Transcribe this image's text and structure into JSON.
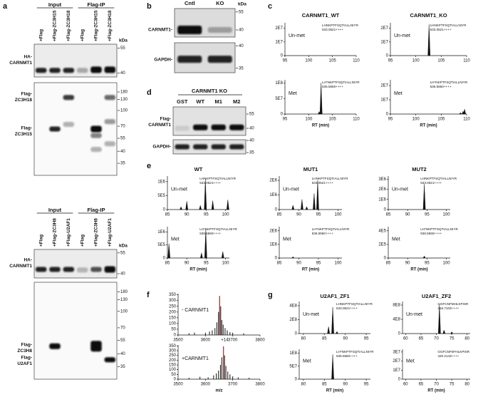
{
  "panel_a": {
    "label": "a",
    "top": {
      "groups": [
        "Input",
        "Flag-IP"
      ],
      "lanes": [
        "+Flag",
        "+Flag-ZC3H15",
        "+Flag-ZC3H18",
        "+Flag",
        "+Flag-ZC3H15",
        "+Flag-ZC3H18"
      ],
      "unit": "kDa",
      "blots": [
        {
          "labels": [
            [
              "HA-",
              "CARNMT1"
            ]
          ],
          "markers": [
            55,
            40
          ]
        },
        {
          "labels": [
            [
              "Flag-",
              "ZC3H18"
            ],
            [
              "Flag-",
              "ZC3H15"
            ]
          ],
          "markers": [
            180,
            130,
            100,
            70,
            55,
            40,
            35
          ]
        }
      ]
    },
    "bottom": {
      "groups": [
        "Input",
        "Flag-IP"
      ],
      "lanes": [
        "+Flag",
        "+Flag-ZC3H8",
        "+Flag-U2AF1",
        "+Flag",
        "+Flag-ZC3H8",
        "+Flag-U2AF1"
      ],
      "unit": "kDa",
      "blots": [
        {
          "labels": [
            [
              "HA-",
              "CARNMT1"
            ]
          ],
          "markers": [
            55,
            40
          ]
        },
        {
          "labels": [
            [
              "Flag-",
              "ZC3H8"
            ],
            [
              "Flag-",
              "U2AF1"
            ]
          ],
          "markers": [
            180,
            130,
            100,
            70,
            55,
            40,
            35
          ]
        }
      ]
    }
  },
  "panel_b": {
    "label": "b",
    "lanes": [
      "Cntl",
      "KO"
    ],
    "unit": "kDa",
    "blots": [
      {
        "labels": [
          [
            "CARNMT1-"
          ]
        ],
        "markers": [
          55,
          40
        ]
      },
      {
        "labels": [
          [
            "GAPDH-"
          ]
        ],
        "markers": [
          40,
          35
        ]
      }
    ]
  },
  "panel_d": {
    "label": "d",
    "header": "CARNMT1 KO",
    "lanes": [
      "GST",
      "WT",
      "M1",
      "M2"
    ],
    "blots": [
      {
        "labels": [
          [
            "Flag-",
            "CARNMT1"
          ]
        ],
        "markers": [
          55,
          40
        ]
      },
      {
        "labels": [
          [
            "GAPDH-"
          ]
        ],
        "markers": [
          40,
          35
        ]
      }
    ]
  },
  "panel_c": {
    "label": "c",
    "xlabel": "RT (min)",
    "columns": [
      {
        "title": "CARNMT1_WT",
        "plots": [
          {
            "tag": "Un-met",
            "peptide": [
              "LHNKPTFSQTIALLNIYR",
              "533.0521++++"
            ],
            "xlim": [
              95,
              110
            ],
            "xticks": [
              95,
              100,
              105,
              110
            ],
            "ylim": [
              0,
              24000000
            ],
            "yticks": [
              0,
              {
                "value": 10000000,
                "label": "1E7"
              },
              {
                "value": 20000000,
                "label": "2E7"
              }
            ]
          },
          {
            "tag": "Met",
            "peptide": [
              "LH*NKPTFSQTIALLNIYR",
              "536.5560++++"
            ],
            "xlim": [
              95,
              110
            ],
            "xticks": [
              95,
              100,
              105,
              110
            ],
            "ylim": [
              0,
              110000000
            ],
            "yticks": [
              0,
              {
                "value": 50000000,
                "label": "5E7"
              },
              {
                "value": 100000000,
                "label": "1E8"
              }
            ],
            "peaks": [
              {
                "x": 102.2,
                "y": 8000000
              },
              {
                "x": 102.6,
                "y": 100000000
              }
            ]
          }
        ]
      },
      {
        "title": "CARNMT1_KO",
        "plots": [
          {
            "tag": "Un-met",
            "peptide": [
              "LHNKPTFSQTIALLNIYR",
              "533.0521++++"
            ],
            "xlim": [
              95,
              110
            ],
            "xticks": [
              95,
              100,
              105,
              110
            ],
            "ylim": [
              0,
              24000000
            ],
            "yticks": [
              0,
              {
                "value": 10000000,
                "label": "1E7"
              },
              {
                "value": 20000000,
                "label": "2E7"
              }
            ],
            "peaks": [
              {
                "x": 102.6,
                "y": 23000000
              }
            ]
          },
          {
            "tag": "Met",
            "peptide": [
              "LH*NKPTFSQTIALLNIYR",
              "536.5560++++"
            ],
            "xlim": [
              95,
              110
            ],
            "xticks": [
              95,
              100,
              105,
              110
            ],
            "ylim": [
              0,
              24000000
            ],
            "yticks": [
              0,
              {
                "value": 10000000,
                "label": "1E7"
              },
              {
                "value": 20000000,
                "label": "2E7"
              }
            ],
            "peaks": [
              {
                "x": 108.8,
                "y": 1000000
              },
              {
                "x": 109.3,
                "y": 2000000
              },
              {
                "x": 109.6,
                "y": 3500000
              }
            ]
          }
        ]
      }
    ]
  },
  "panel_e": {
    "label": "e",
    "xlabel": "RT (min)",
    "columns": [
      {
        "title": "WT",
        "plots": [
          {
            "tag": "Un-met",
            "peptide": [
              "LHNKPTFSQTIALLNIYR",
              "533.0521++++"
            ],
            "xlim": [
              85,
              101
            ],
            "xticks": [
              85,
              90,
              95,
              100
            ],
            "ylim": [
              0,
              1200000
            ],
            "yticks": [
              0,
              {
                "value": 500000,
                "label": "5E5"
              },
              {
                "value": 1000000,
                "label": "1E6"
              }
            ],
            "peaks": [
              {
                "x": 88.5,
                "y": 100000
              },
              {
                "x": 90,
                "y": 300000
              },
              {
                "x": 93.5,
                "y": 150000
              },
              {
                "x": 94.8,
                "y": 1100000
              },
              {
                "x": 96.7,
                "y": 320000
              },
              {
                "x": 100.6,
                "y": 350000
              }
            ]
          },
          {
            "tag": "Met",
            "peptide": [
              "LH*NKPTFSQTIALLNIYR",
              "536.5560++++"
            ],
            "xlim": [
              85,
              101
            ],
            "xticks": [
              85,
              90,
              95,
              100
            ],
            "ylim": [
              0,
              1200000
            ],
            "yticks": [
              0,
              {
                "value": 500000,
                "label": "5E5"
              },
              {
                "value": 1000000,
                "label": "1E6"
              }
            ],
            "peaks": [
              {
                "x": 85.4,
                "y": 550000
              },
              {
                "x": 93.8,
                "y": 200000
              },
              {
                "x": 94.9,
                "y": 1100000
              },
              {
                "x": 99.3,
                "y": 250000
              }
            ]
          }
        ]
      },
      {
        "title": "MUT1",
        "plots": [
          {
            "tag": "Un-met",
            "peptide": [
              "LHNKPTFSQTIALLNIYR",
              "533.0521++++"
            ],
            "xlim": [
              85,
              101
            ],
            "xticks": [
              85,
              90,
              95,
              100
            ],
            "ylim": [
              0,
              2300000
            ],
            "yticks": [
              0,
              {
                "value": 1000000,
                "label": "1E6"
              },
              {
                "value": 2000000,
                "label": "2E6"
              }
            ],
            "peaks": [
              {
                "x": 88.5,
                "y": 300000
              },
              {
                "x": 90.8,
                "y": 700000
              },
              {
                "x": 92,
                "y": 200000
              },
              {
                "x": 93.9,
                "y": 1100000
              },
              {
                "x": 94.8,
                "y": 2000000
              }
            ]
          },
          {
            "tag": "Met",
            "peptide": [
              "LH*NKPTFSQTIALLNIYR",
              "536.5560++++"
            ],
            "xlim": [
              85,
              101
            ],
            "xticks": [
              85,
              90,
              95,
              100
            ],
            "ylim": [
              0,
              2300000
            ],
            "yticks": [
              0,
              {
                "value": 1000000,
                "label": "1E6"
              },
              {
                "value": 2000000,
                "label": "2E6"
              }
            ],
            "peaks": [
              {
                "x": 88.5,
                "y": 100000
              }
            ]
          }
        ]
      },
      {
        "title": "MUT2",
        "plots": [
          {
            "tag": "Un-met",
            "peptide": [
              "LHNKPTFSQTIALLNIYR",
              "533.0521++++"
            ],
            "xlim": [
              85,
              101
            ],
            "xticks": [
              85,
              90,
              95,
              100
            ],
            "ylim": [
              0,
              3300000
            ],
            "yticks": [
              0,
              {
                "value": 1000000,
                "label": "1E6"
              },
              {
                "value": 2000000,
                "label": "2E6"
              },
              {
                "value": 3000000,
                "label": "3E6"
              }
            ],
            "peaks": [
              {
                "x": 94.3,
                "y": 2500000
              }
            ]
          },
          {
            "tag": "Met",
            "peptide": [
              "LH*NKPTFSQTIALLNIYR",
              "536.5560++++"
            ],
            "xlim": [
              85,
              101
            ],
            "xticks": [
              85,
              90,
              95,
              100
            ],
            "ylim": [
              0,
              460000
            ],
            "yticks": [
              0,
              {
                "value": 200000,
                "label": "2E5"
              },
              {
                "value": 400000,
                "label": "4E5"
              }
            ],
            "peaks": [
              {
                "x": 94.3,
                "y": 30000
              }
            ]
          }
        ]
      }
    ]
  },
  "panel_f": {
    "label": "f",
    "annotation": "+14",
    "xlabel": "m/z",
    "plots": [
      {
        "tag": "- CARNMT1",
        "color": "#111111",
        "xlim": [
          3500,
          3800
        ],
        "xticks": [
          3500,
          3600,
          3700,
          3800
        ],
        "ylim": [
          0,
          360
        ],
        "yticks": [
          0,
          50,
          100,
          150,
          200,
          250,
          300,
          350
        ],
        "peaks": [
          {
            "x": 3540,
            "y": 15
          },
          {
            "x": 3560,
            "y": 20
          },
          {
            "x": 3600,
            "y": 20
          },
          {
            "x": 3615,
            "y": 30
          },
          {
            "x": 3625,
            "y": 40
          },
          {
            "x": 3635,
            "y": 60
          },
          {
            "x": 3642,
            "y": 110
          },
          {
            "x": 3648,
            "y": 200
          },
          {
            "x": 3652,
            "y": 340,
            "color": "#d9302a"
          },
          {
            "x": 3656,
            "y": 250
          },
          {
            "x": 3660,
            "y": 130
          },
          {
            "x": 3665,
            "y": 90
          },
          {
            "x": 3672,
            "y": 60
          },
          {
            "x": 3680,
            "y": 40
          },
          {
            "x": 3690,
            "y": 25
          },
          {
            "x": 3700,
            "y": 20
          },
          {
            "x": 3740,
            "y": 15
          }
        ]
      },
      {
        "tag": "+CARNMT1",
        "color": "#111111",
        "xlim": [
          3500,
          3800
        ],
        "xticks": [
          3500,
          3600,
          3700,
          3800
        ],
        "ylim": [
          0,
          360
        ],
        "yticks": [
          0,
          50,
          100,
          150,
          200,
          250,
          300,
          350
        ],
        "peaks": [
          {
            "x": 3540,
            "y": 15
          },
          {
            "x": 3580,
            "y": 25
          },
          {
            "x": 3610,
            "y": 20
          },
          {
            "x": 3630,
            "y": 40
          },
          {
            "x": 3640,
            "y": 60
          },
          {
            "x": 3648,
            "y": 90
          },
          {
            "x": 3655,
            "y": 150
          },
          {
            "x": 3660,
            "y": 230
          },
          {
            "x": 3666,
            "y": 345,
            "color": "#d9302a"
          },
          {
            "x": 3670,
            "y": 250
          },
          {
            "x": 3675,
            "y": 140
          },
          {
            "x": 3682,
            "y": 80
          },
          {
            "x": 3690,
            "y": 50
          },
          {
            "x": 3700,
            "y": 30
          },
          {
            "x": 3720,
            "y": 20
          },
          {
            "x": 3760,
            "y": 15
          }
        ]
      }
    ]
  },
  "panel_g": {
    "label": "g",
    "xlabel": "RT (min)",
    "columns": [
      {
        "title": "U2AF1_ZF1",
        "plots": [
          {
            "tag": "Un-met",
            "peptide": [
              "LHNKPTFSQTIALLNIYR",
              "533.0521++++"
            ],
            "xlim": [
              79,
              96
            ],
            "xticks": [
              80,
              85,
              90,
              95
            ],
            "ylim": [
              0,
              460000000
            ],
            "yticks": [
              0,
              {
                "value": 200000000,
                "label": "2E8"
              },
              {
                "value": 400000000,
                "label": "4E8"
              }
            ],
            "peaks": [
              {
                "x": 86,
                "y": 100000000
              },
              {
                "x": 87,
                "y": 380000000
              },
              {
                "x": 88,
                "y": 30000000
              }
            ]
          },
          {
            "tag": "Met",
            "peptide": [
              "LH*NKPTFSQTIALLNIYR",
              "536.5560++++"
            ],
            "xlim": [
              79,
              96
            ],
            "xticks": [
              80,
              85,
              90,
              95
            ],
            "ylim": [
              0,
              115000000
            ],
            "yticks": [
              0,
              {
                "value": 50000000,
                "label": "5E7"
              },
              {
                "value": 100000000,
                "label": "1E8"
              }
            ],
            "peaks": [
              {
                "x": 87,
                "y": 95000000
              }
            ]
          }
        ]
      },
      {
        "title": "U2AF1_ZF2",
        "plots": [
          {
            "tag": "Un-met",
            "peptide": [
              "GGFCNFMHLKPISR",
              "416.7103++++"
            ],
            "xlim": [
              59,
              81
            ],
            "xticks": [
              60,
              65,
              70,
              75,
              80
            ],
            "ylim": [
              0,
              900000000
            ],
            "yticks": [
              0,
              {
                "value": 400000000,
                "label": "4E8"
              },
              {
                "value": 800000000,
                "label": "8E8"
              }
            ],
            "peaks": [
              {
                "x": 71,
                "y": 820000000
              },
              {
                "x": 72.5,
                "y": 100000000
              },
              {
                "x": 75,
                "y": 50000000
              }
            ]
          },
          {
            "tag": "Met",
            "peptide": [
              "GGFCNFM*HLKPISR",
              "420.2143++++"
            ],
            "xlim": [
              59,
              81
            ],
            "xticks": [
              60,
              65,
              70,
              75,
              80
            ],
            "ylim": [
              0,
              33000000
            ],
            "yticks": [
              0,
              {
                "value": 10000000,
                "label": "1E7"
              },
              {
                "value": 20000000,
                "label": "2E7"
              },
              {
                "value": 30000000,
                "label": "3E7"
              }
            ]
          }
        ]
      }
    ]
  }
}
